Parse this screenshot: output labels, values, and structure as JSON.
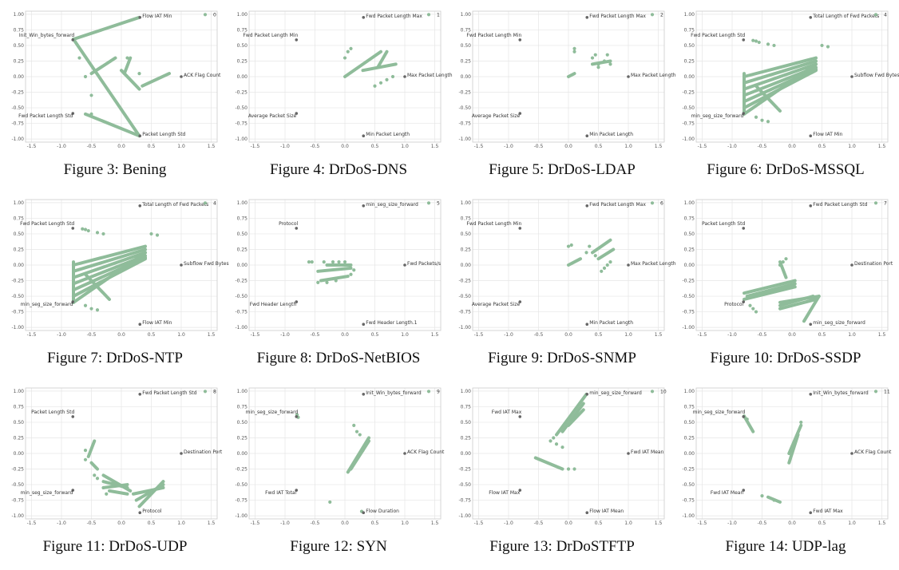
{
  "colors": {
    "point": "#8fbc9a",
    "anchor": "#666666",
    "grid": "#e6e6e6",
    "frame": "#cccccc"
  },
  "axis": {
    "xlim": [
      -1.6,
      1.6
    ],
    "ylim": [
      -1.05,
      1.05
    ],
    "xticks": [
      "-1.5",
      "-1.0",
      "-0.5",
      "0.0",
      "0.5",
      "1.0",
      "1.5"
    ],
    "yticks": [
      "1.00",
      "0.75",
      "0.50",
      "0.25",
      "0.00",
      "-0.25",
      "-0.50",
      "-0.75",
      "-1.00"
    ]
  },
  "chart_data": [
    {
      "type": "scatter",
      "caption": "Figure 3: Bening",
      "legend": "0",
      "anchors": [
        {
          "label": "Flow IAT Min",
          "x": 0.31,
          "y": 0.95
        },
        {
          "label": "Init_Win_bytes_forward",
          "x": -0.81,
          "y": 0.59
        },
        {
          "label": "ACK Flag Count",
          "x": 1.0,
          "y": 0.0
        },
        {
          "label": "Fwd Packet Length Std",
          "x": -0.81,
          "y": -0.59
        },
        {
          "label": "Packet Length Std",
          "x": 0.31,
          "y": -0.95
        }
      ],
      "segments": [
        [
          -0.8,
          0.6,
          0.3,
          0.95
        ],
        [
          -0.8,
          0.6,
          0.3,
          -0.95
        ],
        [
          -0.6,
          -0.6,
          0.3,
          -0.95
        ],
        [
          0.0,
          0.1,
          0.3,
          -0.2
        ],
        [
          0.35,
          -0.15,
          0.8,
          0.05
        ],
        [
          -0.5,
          0.05,
          -0.1,
          0.3
        ],
        [
          0.05,
          0.05,
          0.15,
          0.3
        ]
      ],
      "points": [
        [
          -0.8,
          0.6
        ],
        [
          -0.7,
          0.3
        ],
        [
          -0.6,
          0.0
        ],
        [
          -0.5,
          -0.3
        ],
        [
          -0.5,
          -0.6
        ],
        [
          0.1,
          0.3
        ],
        [
          0.3,
          0.05
        ]
      ]
    },
    {
      "type": "scatter",
      "caption": "Figure 4: DrDoS-DNS",
      "legend": "1",
      "anchors": [
        {
          "label": "Fwd Packet Length Max",
          "x": 0.31,
          "y": 0.95
        },
        {
          "label": "Fwd Packet Length Min",
          "x": -0.81,
          "y": 0.59
        },
        {
          "label": "Max Packet Length",
          "x": 1.0,
          "y": 0.0
        },
        {
          "label": "Average Packet Size",
          "x": -0.81,
          "y": -0.59
        },
        {
          "label": "Min Packet Length",
          "x": 0.31,
          "y": -0.95
        }
      ],
      "segments": [
        [
          0.0,
          0.0,
          0.6,
          0.4
        ],
        [
          0.3,
          0.1,
          0.85,
          0.2
        ],
        [
          0.55,
          0.15,
          0.7,
          0.4
        ]
      ],
      "points": [
        [
          0.0,
          0.3
        ],
        [
          0.05,
          0.4
        ],
        [
          0.1,
          0.45
        ],
        [
          0.5,
          -0.15
        ],
        [
          0.6,
          -0.1
        ],
        [
          0.7,
          -0.05
        ],
        [
          0.8,
          0.0
        ]
      ]
    },
    {
      "type": "scatter",
      "caption": "Figure 5: DrDoS-LDAP",
      "legend": "2",
      "anchors": [
        {
          "label": "Fwd Packet Length Max",
          "x": 0.31,
          "y": 0.95
        },
        {
          "label": "Fwd Packet Length Min",
          "x": -0.81,
          "y": 0.59
        },
        {
          "label": "Max Packet Length",
          "x": 1.0,
          "y": 0.0
        },
        {
          "label": "Average Packet Size",
          "x": -0.81,
          "y": -0.59
        },
        {
          "label": "Min Packet Length",
          "x": 0.31,
          "y": -0.95
        }
      ],
      "segments": [
        [
          0.0,
          0.0,
          0.1,
          0.05
        ],
        [
          0.4,
          0.2,
          0.7,
          0.25
        ]
      ],
      "points": [
        [
          0.1,
          0.4
        ],
        [
          0.1,
          0.45
        ],
        [
          0.4,
          0.3
        ],
        [
          0.45,
          0.35
        ],
        [
          0.5,
          0.2
        ],
        [
          0.6,
          0.25
        ],
        [
          0.65,
          0.35
        ],
        [
          0.5,
          0.15
        ],
        [
          0.7,
          0.2
        ]
      ]
    },
    {
      "type": "scatter",
      "caption": "Figure 6: DrDoS-MSSQL",
      "legend": "4",
      "anchors": [
        {
          "label": "Total Length of Fwd Packets",
          "x": 0.31,
          "y": 0.95
        },
        {
          "label": "Fwd Packet Length Std",
          "x": -0.81,
          "y": 0.59
        },
        {
          "label": "Subflow Fwd Bytes",
          "x": 1.0,
          "y": 0.0
        },
        {
          "label": "min_seg_size_forward",
          "x": -0.81,
          "y": -0.59
        },
        {
          "label": "Flow IAT Min",
          "x": 0.31,
          "y": -0.95
        }
      ],
      "segments": [
        [
          -0.8,
          0.0,
          0.4,
          0.3
        ],
        [
          -0.8,
          -0.1,
          0.4,
          0.25
        ],
        [
          -0.8,
          -0.2,
          0.4,
          0.2
        ],
        [
          -0.8,
          -0.3,
          0.4,
          0.15
        ],
        [
          -0.8,
          -0.4,
          0.4,
          0.12
        ],
        [
          -0.8,
          -0.5,
          0.4,
          0.1
        ],
        [
          -0.8,
          -0.6,
          0.4,
          0.2
        ],
        [
          -0.8,
          0.05,
          -0.8,
          -0.6
        ],
        [
          -0.6,
          -0.15,
          -0.2,
          -0.55
        ]
      ],
      "points": [
        [
          -0.65,
          0.58
        ],
        [
          -0.6,
          0.57
        ],
        [
          -0.55,
          0.55
        ],
        [
          -0.4,
          0.52
        ],
        [
          -0.3,
          0.5
        ],
        [
          0.5,
          0.5
        ],
        [
          0.6,
          0.48
        ],
        [
          -0.6,
          -0.65
        ],
        [
          -0.5,
          -0.7
        ],
        [
          -0.4,
          -0.72
        ]
      ]
    },
    {
      "type": "scatter",
      "caption": "Figure 7: DrDoS-NTP",
      "legend": "4",
      "anchors": [
        {
          "label": "Total Length of Fwd Packets",
          "x": 0.31,
          "y": 0.95
        },
        {
          "label": "Fwd Packet Length Std",
          "x": -0.81,
          "y": 0.59
        },
        {
          "label": "Subflow Fwd Bytes",
          "x": 1.0,
          "y": 0.0
        },
        {
          "label": "min_seg_size_forward",
          "x": -0.81,
          "y": -0.59
        },
        {
          "label": "Flow IAT Min",
          "x": 0.31,
          "y": -0.95
        }
      ],
      "segments": [
        [
          -0.8,
          0.0,
          0.4,
          0.3
        ],
        [
          -0.8,
          -0.1,
          0.4,
          0.25
        ],
        [
          -0.8,
          -0.2,
          0.4,
          0.2
        ],
        [
          -0.8,
          -0.3,
          0.4,
          0.15
        ],
        [
          -0.8,
          -0.4,
          0.4,
          0.12
        ],
        [
          -0.8,
          -0.5,
          0.4,
          0.1
        ],
        [
          -0.8,
          -0.6,
          0.4,
          0.2
        ],
        [
          -0.8,
          0.05,
          -0.8,
          -0.6
        ],
        [
          -0.6,
          -0.15,
          -0.2,
          -0.55
        ]
      ],
      "points": [
        [
          -0.65,
          0.58
        ],
        [
          -0.6,
          0.57
        ],
        [
          -0.55,
          0.55
        ],
        [
          -0.4,
          0.52
        ],
        [
          -0.3,
          0.5
        ],
        [
          0.5,
          0.5
        ],
        [
          0.6,
          0.48
        ],
        [
          -0.6,
          -0.65
        ],
        [
          -0.5,
          -0.7
        ],
        [
          -0.4,
          -0.72
        ]
      ]
    },
    {
      "type": "scatter",
      "caption": "Figure 8: DrDoS-NetBIOS",
      "legend": "5",
      "anchors": [
        {
          "label": "min_seg_size_forward",
          "x": 0.31,
          "y": 0.95
        },
        {
          "label": "Protocol",
          "x": -0.81,
          "y": 0.59
        },
        {
          "label": "Fwd Packets/s",
          "x": 1.0,
          "y": 0.0
        },
        {
          "label": "Fwd Header Length",
          "x": -0.81,
          "y": -0.59
        },
        {
          "label": "Fwd Header Length.1",
          "x": 0.31,
          "y": -0.95
        }
      ],
      "segments": [
        [
          -0.45,
          -0.1,
          0.1,
          -0.05
        ],
        [
          -0.4,
          -0.25,
          0.05,
          -0.18
        ],
        [
          -0.3,
          0.0,
          0.1,
          0.0
        ]
      ],
      "points": [
        [
          -0.6,
          0.05
        ],
        [
          -0.55,
          0.05
        ],
        [
          -0.35,
          0.05
        ],
        [
          -0.2,
          0.05
        ],
        [
          -0.1,
          0.05
        ],
        [
          0.0,
          0.05
        ],
        [
          -0.45,
          -0.28
        ],
        [
          -0.3,
          -0.28
        ],
        [
          -0.15,
          -0.25
        ],
        [
          0.1,
          -0.15
        ],
        [
          0.15,
          -0.08
        ]
      ]
    },
    {
      "type": "scatter",
      "caption": "Figure 9: DrDoS-SNMP",
      "legend": "6",
      "anchors": [
        {
          "label": "Fwd Packet Length Max",
          "x": 0.31,
          "y": 0.95
        },
        {
          "label": "Fwd Packet Length Min",
          "x": -0.81,
          "y": 0.59
        },
        {
          "label": "Max Packet Length",
          "x": 1.0,
          "y": 0.0
        },
        {
          "label": "Average Packet Size",
          "x": -0.81,
          "y": -0.59
        },
        {
          "label": "Min Packet Length",
          "x": 0.31,
          "y": -0.95
        }
      ],
      "segments": [
        [
          0.0,
          0.0,
          0.2,
          0.1
        ],
        [
          0.4,
          0.2,
          0.7,
          0.4
        ],
        [
          0.5,
          0.1,
          0.75,
          0.25
        ]
      ],
      "points": [
        [
          0.0,
          0.3
        ],
        [
          0.05,
          0.32
        ],
        [
          0.3,
          0.2
        ],
        [
          0.35,
          0.3
        ],
        [
          0.45,
          0.15
        ],
        [
          0.55,
          -0.1
        ],
        [
          0.6,
          -0.05
        ],
        [
          0.65,
          0.0
        ],
        [
          0.7,
          0.05
        ]
      ]
    },
    {
      "type": "scatter",
      "caption": "Figure 10: DrDoS-SSDP",
      "legend": "7",
      "anchors": [
        {
          "label": "Fwd Packet Length Std",
          "x": 0.31,
          "y": 0.95
        },
        {
          "label": "Packet Length Std",
          "x": -0.81,
          "y": 0.59
        },
        {
          "label": "Destination Port",
          "x": 1.0,
          "y": 0.0
        },
        {
          "label": "Protocol",
          "x": -0.81,
          "y": -0.59
        },
        {
          "label": "min_seg_size_forward",
          "x": 0.31,
          "y": -0.95
        }
      ],
      "segments": [
        [
          -0.8,
          -0.45,
          0.05,
          -0.25
        ],
        [
          -0.8,
          -0.55,
          0.05,
          -0.35
        ],
        [
          -0.75,
          -0.5,
          0.05,
          -0.3
        ],
        [
          -0.2,
          -0.6,
          0.45,
          -0.5
        ],
        [
          -0.2,
          -0.7,
          0.4,
          -0.55
        ],
        [
          -0.2,
          -0.65,
          0.35,
          -0.5
        ],
        [
          0.2,
          -0.9,
          0.45,
          -0.5
        ],
        [
          -0.2,
          0.05,
          -0.1,
          -0.2
        ]
      ],
      "points": [
        [
          -0.2,
          0.0
        ],
        [
          -0.15,
          0.05
        ],
        [
          -0.1,
          0.1
        ],
        [
          -0.7,
          -0.65
        ],
        [
          -0.65,
          -0.7
        ],
        [
          -0.6,
          -0.75
        ]
      ]
    },
    {
      "type": "scatter",
      "caption": "Figure 11: DrDoS-UDP",
      "legend": "8",
      "anchors": [
        {
          "label": "Fwd Packet Length Std",
          "x": 0.31,
          "y": 0.95
        },
        {
          "label": "Packet Length Std",
          "x": -0.81,
          "y": 0.59
        },
        {
          "label": "Destination Port",
          "x": 1.0,
          "y": 0.0
        },
        {
          "label": "min_seg_size_forward",
          "x": -0.81,
          "y": -0.59
        },
        {
          "label": "Protocol",
          "x": 0.31,
          "y": -0.95
        }
      ],
      "segments": [
        [
          -0.55,
          -0.05,
          -0.45,
          0.2
        ],
        [
          -0.5,
          -0.15,
          -0.4,
          -0.25
        ],
        [
          -0.3,
          -0.35,
          0.15,
          -0.6
        ],
        [
          -0.3,
          -0.45,
          0.1,
          -0.55
        ],
        [
          -0.3,
          -0.55,
          0.1,
          -0.5
        ],
        [
          -0.2,
          -0.6,
          0.1,
          -0.65
        ],
        [
          0.3,
          -0.85,
          0.7,
          -0.45
        ],
        [
          0.25,
          -0.75,
          0.7,
          -0.5
        ],
        [
          0.2,
          -0.65,
          0.7,
          -0.55
        ]
      ],
      "points": [
        [
          -0.6,
          0.05
        ],
        [
          -0.6,
          -0.1
        ],
        [
          -0.45,
          -0.35
        ],
        [
          -0.4,
          -0.4
        ],
        [
          -0.3,
          -0.55
        ],
        [
          -0.25,
          -0.65
        ]
      ]
    },
    {
      "type": "scatter",
      "caption": "Figure 12: SYN",
      "legend": "9",
      "anchors": [
        {
          "label": "Init_Win_bytes_forward",
          "x": 0.31,
          "y": 0.95
        },
        {
          "label": "min_seg_size_forward",
          "x": -0.81,
          "y": 0.59
        },
        {
          "label": "ACK Flag Count",
          "x": 1.0,
          "y": 0.0
        },
        {
          "label": "Fwd IAT Total",
          "x": -0.81,
          "y": -0.59
        },
        {
          "label": "Flow Duration",
          "x": 0.31,
          "y": -0.95
        }
      ],
      "segments": [
        [
          0.05,
          -0.3,
          0.4,
          0.25
        ],
        [
          0.1,
          -0.25,
          0.4,
          0.2
        ]
      ],
      "points": [
        [
          -0.8,
          0.62
        ],
        [
          -0.78,
          0.58
        ],
        [
          0.15,
          0.45
        ],
        [
          0.2,
          0.35
        ],
        [
          0.25,
          0.3
        ],
        [
          0.3,
          0.05
        ],
        [
          -0.25,
          -0.78
        ],
        [
          0.28,
          -0.93
        ]
      ]
    },
    {
      "type": "scatter",
      "caption": "Figure 13: DrDoSTFTP",
      "legend": "10",
      "anchors": [
        {
          "label": "min_seg_size_forward",
          "x": 0.31,
          "y": 0.95
        },
        {
          "label": "Fwd IAT Max",
          "x": -0.81,
          "y": 0.59
        },
        {
          "label": "Fwd IAT Mean",
          "x": 1.0,
          "y": 0.0
        },
        {
          "label": "Flow IAT Max",
          "x": -0.81,
          "y": -0.59
        },
        {
          "label": "Flow IAT Mean",
          "x": 0.31,
          "y": -0.95
        }
      ],
      "segments": [
        [
          -0.2,
          0.3,
          0.3,
          0.95
        ],
        [
          -0.1,
          0.35,
          0.25,
          0.8
        ],
        [
          0.0,
          0.45,
          0.25,
          0.7
        ],
        [
          -0.55,
          -0.07,
          -0.1,
          -0.25
        ]
      ],
      "points": [
        [
          -0.25,
          0.25
        ],
        [
          -0.3,
          0.2
        ],
        [
          -0.2,
          0.15
        ],
        [
          -0.1,
          0.1
        ],
        [
          0.0,
          -0.25
        ],
        [
          0.1,
          -0.25
        ]
      ]
    },
    {
      "type": "scatter",
      "caption": "Figure 14: UDP-lag",
      "legend": "11",
      "anchors": [
        {
          "label": "Init_Win_bytes_forward",
          "x": 0.31,
          "y": 0.95
        },
        {
          "label": "min_seg_size_forward",
          "x": -0.81,
          "y": 0.59
        },
        {
          "label": "ACK Flag Count",
          "x": 1.0,
          "y": 0.0
        },
        {
          "label": "Fwd IAT Mean",
          "x": -0.81,
          "y": -0.59
        },
        {
          "label": "Fwd IAT Max",
          "x": 0.31,
          "y": -0.95
        }
      ],
      "segments": [
        [
          -0.05,
          0.0,
          0.15,
          0.45
        ],
        [
          -0.05,
          -0.15,
          0.1,
          0.3
        ],
        [
          -0.8,
          0.6,
          -0.65,
          0.35
        ],
        [
          -0.4,
          -0.7,
          -0.2,
          -0.78
        ]
      ],
      "points": [
        [
          0.15,
          0.5
        ],
        [
          -0.5,
          -0.68
        ],
        [
          -0.3,
          -0.75
        ],
        [
          -0.75,
          0.55
        ]
      ]
    }
  ]
}
